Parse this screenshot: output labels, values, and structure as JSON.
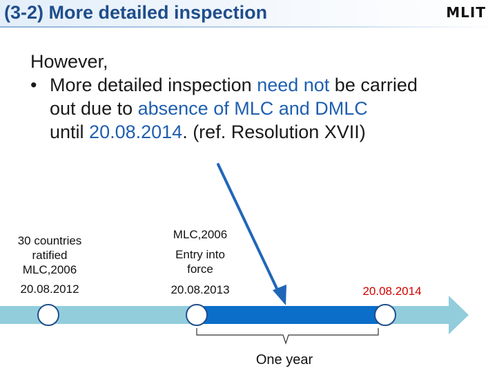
{
  "header": {
    "title": "(3-2) More detailed inspection",
    "logo_text": "MLIT"
  },
  "content": {
    "lead": "However,",
    "bullet_symbol": "•",
    "line1": {
      "t1": "More detailed inspection ",
      "h1": "need not",
      "t2": " be carried"
    },
    "line2": {
      "t1": "out due to ",
      "h1": "absence of MLC and DMLC"
    },
    "line3": {
      "t1": "until ",
      "h1": "20.08.2014",
      "t2": ". (ref. Resolution XVII)"
    }
  },
  "timeline": {
    "events": [
      {
        "lines": [
          "30 countries",
          "ratified",
          "MLC,2006"
        ],
        "date": "20.08.2012"
      },
      {
        "lines": [
          "MLC,2006",
          "Entry into",
          "force"
        ],
        "date": "20.08.2013"
      },
      {
        "lines": [],
        "date": "20.08.2014"
      }
    ],
    "span_label": "One year"
  },
  "colors": {
    "arrow_fill": "#92cddc",
    "highlight_bar": "#0b6ec8",
    "pointer_arrow": "#1f66b8",
    "highlight_text": "#1f5fb0",
    "red_date": "#d40000",
    "title_text": "#1f4e8c"
  }
}
